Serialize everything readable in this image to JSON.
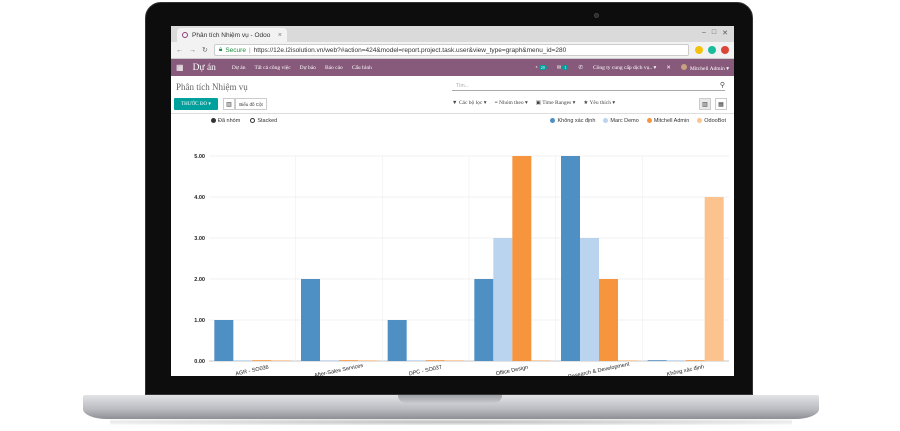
{
  "browser": {
    "tab_title": "Phân tích Nhiệm vụ - Odoo",
    "tab_close": "×",
    "secure_label": "Secure",
    "url": "https://12e.l2isolution.vn/web?#action=424&model=report.project.task.user&view_type=graph&menu_id=280"
  },
  "navbar": {
    "brand": "Dự án",
    "menu": [
      "Dự án",
      "Tất cả công việc",
      "Dự báo",
      "Báo cáo",
      "Cấu hình"
    ],
    "messages_badge": "20",
    "chat_badge": "1",
    "company": "Công ty cung cấp dịch vụ..",
    "company_caret": "▾",
    "user": "Mitchell Admin",
    "user_caret": "▾",
    "close_label": "✕"
  },
  "control_panel": {
    "breadcrumb": "Phân tích Nhiệm vụ",
    "search_placeholder": "Tìm...",
    "measures_button": "THƯỚC ĐO",
    "view_bar_label": "Bar",
    "view_line_label": "Biểu đồ Cột",
    "filters": [
      "Các bộ lọc",
      "Nhóm theo",
      "Time Ranges",
      "Yêu thích"
    ]
  },
  "chart_data": {
    "type": "bar",
    "categories": [
      "AGR - SO036",
      "After-Sales Services",
      "DPC - SO037",
      "Office Design",
      "Research & Development",
      "Không xác định"
    ],
    "series": [
      {
        "name": "Không xác định",
        "color": "#4e8fc4",
        "values": [
          1,
          2,
          1,
          2,
          5,
          0
        ]
      },
      {
        "name": "Marc Demo",
        "color": "#bad3ee",
        "values": [
          0,
          0,
          0,
          3,
          3,
          0
        ]
      },
      {
        "name": "Mitchell Admin",
        "color": "#f7953e",
        "values": [
          0,
          0,
          0,
          5,
          2,
          0
        ]
      },
      {
        "name": "OdooBot",
        "color": "#fcc38f",
        "values": [
          0,
          0,
          0,
          0,
          0,
          4
        ]
      }
    ],
    "ylim": [
      0,
      5
    ],
    "y_ticks": [
      "0.00",
      "1.00",
      "2.00",
      "3.00",
      "4.00",
      "5.00"
    ],
    "mode_options": [
      "Đã nhóm",
      "Stacked"
    ],
    "mode_selected": "Đã nhóm",
    "grid": true,
    "legend_placement": "top-right"
  }
}
